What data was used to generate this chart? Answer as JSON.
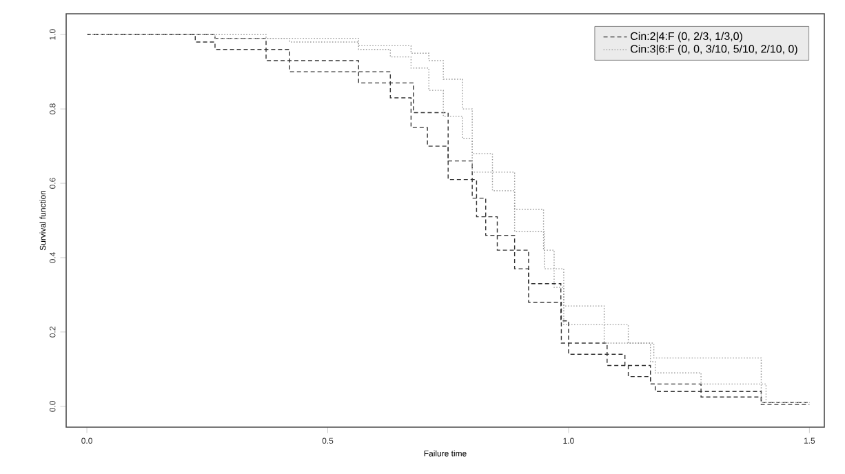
{
  "chart_data": {
    "type": "step",
    "xlabel": "Failure time",
    "ylabel": "Survival function",
    "xlim": [
      -0.043,
      1.531
    ],
    "ylim": [
      -0.056,
      1.056
    ],
    "xticks": [
      {
        "value": 0,
        "label": "0.0"
      },
      0.5,
      {
        "value": 1,
        "label": "1.0"
      },
      1.5
    ],
    "yticks": [
      {
        "value": 0,
        "label": "0.0"
      },
      0.2,
      0.4,
      0.6,
      0.8,
      {
        "value": 1,
        "label": "1.0"
      }
    ],
    "grid": false,
    "legend": "top right",
    "marker": "none",
    "series": [
      {
        "name": "Cin:2|4:F (0, 2/3, 1/3,0)",
        "color": "#333333",
        "line_style": "dashed",
        "x": [
          0,
          0.225,
          0.266,
          0.372,
          0.421,
          0.564,
          0.63,
          0.673,
          0.707,
          0.75,
          0.809,
          0.852,
          0.917,
          0.985,
          1.0,
          1.08,
          1.124,
          1.17,
          1.275,
          1.4,
          1.5
        ],
        "values": [
          1.0,
          0.98,
          0.96,
          0.93,
          0.9,
          0.87,
          0.83,
          0.75,
          0.7,
          0.61,
          0.51,
          0.42,
          0.28,
          0.17,
          0.14,
          0.11,
          0.08,
          0.06,
          0.025,
          0.005,
          0.005
        ]
      },
      {
        "color": "#333333",
        "line_style": "dashed",
        "x": [
          0,
          0.266,
          0.372,
          0.421,
          0.564,
          0.63,
          0.678,
          0.75,
          0.8,
          0.828,
          0.888,
          0.917,
          0.984,
          1.0,
          1.08,
          1.117,
          1.17,
          1.18,
          1.4,
          1.5
        ],
        "values": [
          1.0,
          0.99,
          0.96,
          0.93,
          0.9,
          0.87,
          0.79,
          0.66,
          0.56,
          0.46,
          0.37,
          0.33,
          0.23,
          0.17,
          0.14,
          0.11,
          0.06,
          0.04,
          0.01,
          0.01
        ]
      },
      {
        "name": "Cin:3|6:F (0, 0, 3/10, 5/10, 2/10, 0)",
        "color": "#999999",
        "line_style": "dotted",
        "x": [
          0,
          0.372,
          0.564,
          0.673,
          0.71,
          0.74,
          0.78,
          0.8,
          0.842,
          0.888,
          0.948,
          0.97,
          0.99,
          1.074,
          1.124,
          1.177,
          1.4,
          1.41,
          1.5
        ],
        "values": [
          1.0,
          0.99,
          0.97,
          0.95,
          0.93,
          0.88,
          0.8,
          0.68,
          0.63,
          0.53,
          0.42,
          0.37,
          0.27,
          0.22,
          0.17,
          0.13,
          0.06,
          0.01,
          0.01
        ]
      },
      {
        "color": "#999999",
        "line_style": "dotted",
        "x": [
          0,
          0.266,
          0.421,
          0.564,
          0.63,
          0.673,
          0.71,
          0.74,
          0.78,
          0.8,
          0.842,
          0.888,
          0.95,
          0.97,
          0.99,
          1.074,
          1.17,
          1.18,
          1.275,
          1.4,
          1.5
        ],
        "values": [
          1.0,
          0.99,
          0.98,
          0.96,
          0.94,
          0.91,
          0.85,
          0.78,
          0.72,
          0.63,
          0.58,
          0.47,
          0.37,
          0.32,
          0.22,
          0.17,
          0.12,
          0.09,
          0.06,
          0.01,
          0.01
        ]
      }
    ]
  }
}
